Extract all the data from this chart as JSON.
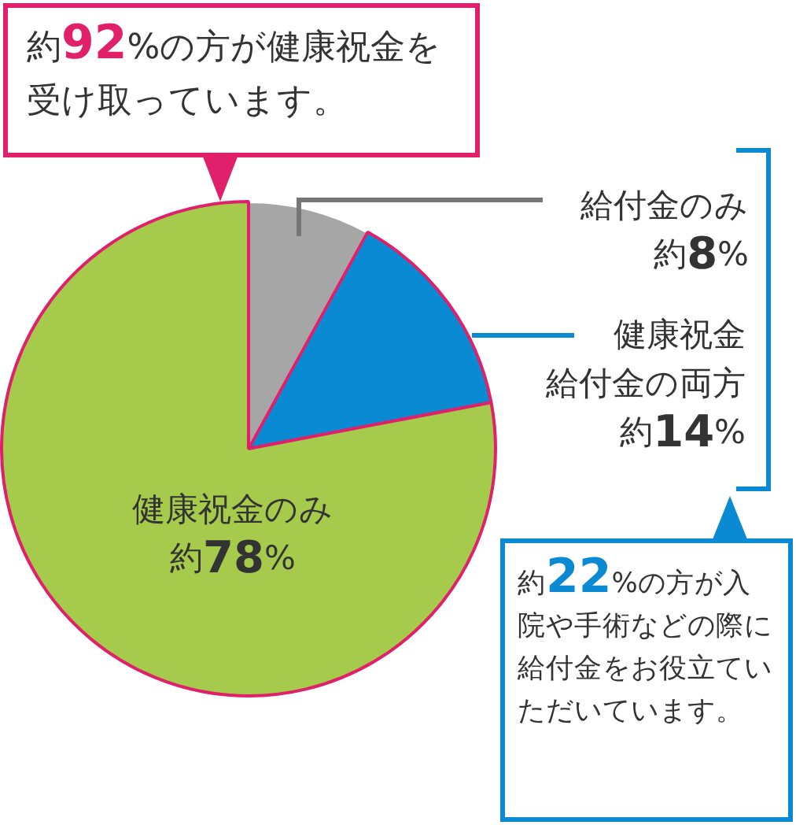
{
  "chart_data": {
    "type": "pie",
    "categories": [
      "給付金のみ",
      "健康祝金給付金の両方",
      "健康祝金のみ"
    ],
    "values": [
      8,
      14,
      78
    ],
    "value_labels": [
      "約8%",
      "約14%",
      "約78%"
    ],
    "colors": [
      "#a6a6a6",
      "#0a8ad2",
      "#a6cb4c"
    ],
    "legend": false,
    "annotations": [
      "約92%の方が健康祝金を受け取っています。",
      "約22%の方が入院や手術などの際に給付金をお役立ていただいています。"
    ]
  }
}
